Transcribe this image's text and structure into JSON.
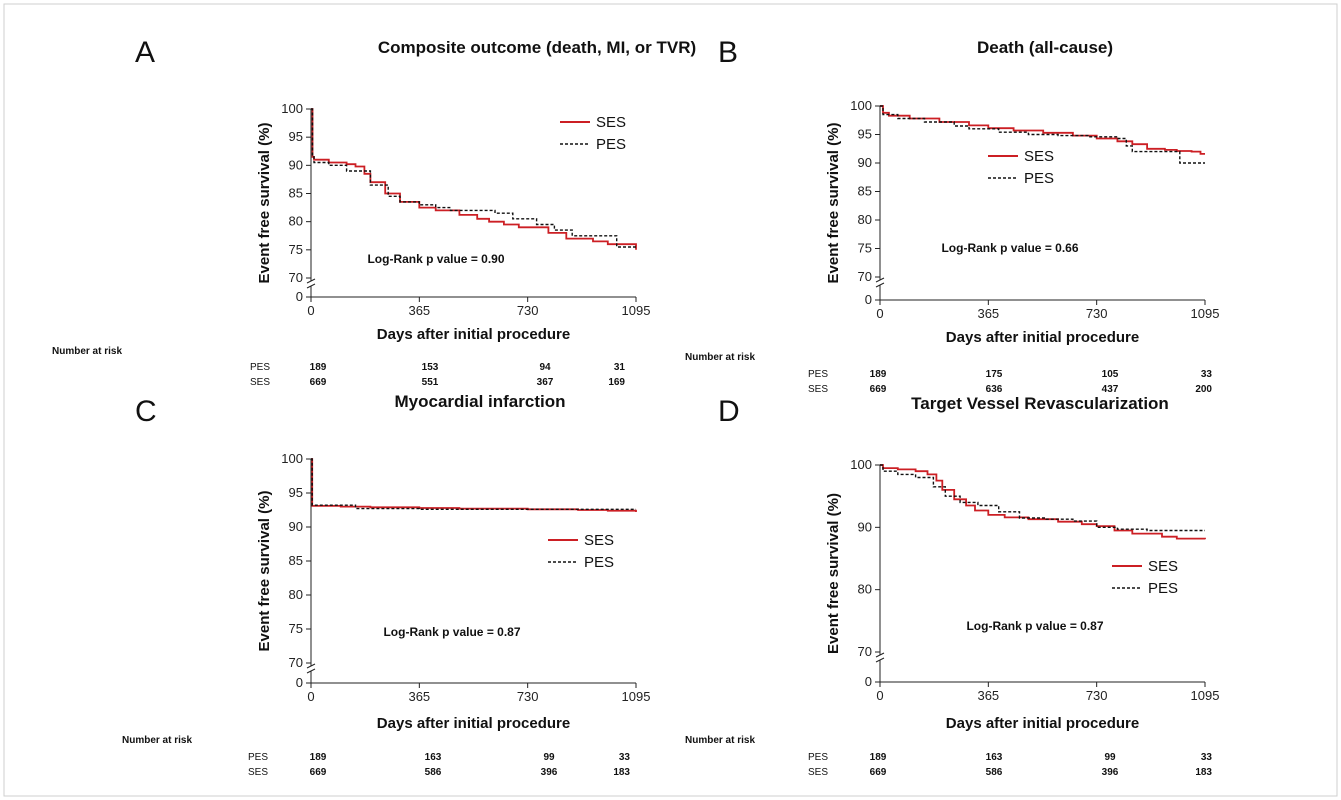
{
  "colors": {
    "ses": "#cc1f24",
    "pes": "#111111"
  },
  "number_at_risk_label": "Number at risk",
  "chart_data": [
    {
      "type": "line",
      "panel": "A",
      "title": "Composite outcome (death, MI, or TVR)",
      "xlabel": "Days after initial procedure",
      "ylabel": "Event free survival (%)",
      "xticks": [
        0,
        365,
        730,
        1095
      ],
      "yticks": [
        0,
        70,
        75,
        80,
        85,
        90,
        95,
        100
      ],
      "xlim": [
        0,
        1095
      ],
      "ylim": [
        0,
        100
      ],
      "axis_break": true,
      "legend": [
        "SES",
        "PES"
      ],
      "annotation": "Log-Rank p value = 0.90",
      "series": [
        {
          "name": "SES",
          "step": true,
          "x": [
            0,
            5,
            10,
            60,
            120,
            150,
            180,
            200,
            250,
            300,
            365,
            420,
            500,
            560,
            600,
            650,
            700,
            800,
            860,
            950,
            1000,
            1095
          ],
          "y": [
            100,
            91.5,
            91,
            90.5,
            90.2,
            89.8,
            88.5,
            87,
            85,
            83.5,
            82.5,
            82,
            81.2,
            80.5,
            80,
            79.5,
            79,
            78,
            77,
            76.5,
            76,
            75
          ]
        },
        {
          "name": "PES",
          "step": true,
          "x": [
            0,
            5,
            10,
            60,
            120,
            170,
            200,
            260,
            300,
            365,
            420,
            470,
            550,
            620,
            680,
            760,
            820,
            880,
            960,
            1030,
            1095
          ],
          "y": [
            100,
            91.5,
            90.5,
            90,
            89,
            89,
            86.5,
            84.5,
            83.5,
            83,
            82.5,
            82,
            82,
            81.5,
            80.5,
            79.5,
            78.5,
            77.5,
            77.5,
            75.5,
            75.5
          ]
        }
      ],
      "risk_table": {
        "rows": [
          {
            "name": "PES",
            "values": [
              "189",
              "153",
              "94",
              "31"
            ]
          },
          {
            "name": "SES",
            "values": [
              "669",
              "551",
              "367",
              "169"
            ]
          }
        ]
      }
    },
    {
      "type": "line",
      "panel": "B",
      "title": "Death (all-cause)",
      "xlabel": "Days after initial procedure",
      "ylabel": "Event free survival (%)",
      "xticks": [
        0,
        365,
        730,
        1095
      ],
      "yticks": [
        0,
        70,
        75,
        80,
        85,
        90,
        95,
        100
      ],
      "xlim": [
        0,
        1095
      ],
      "ylim": [
        0,
        100
      ],
      "axis_break": true,
      "legend": [
        "SES",
        "PES"
      ],
      "annotation": "Log-Rank p value = 0.66",
      "series": [
        {
          "name": "SES",
          "step": true,
          "x": [
            0,
            10,
            30,
            100,
            200,
            300,
            365,
            450,
            550,
            650,
            730,
            800,
            850,
            900,
            960,
            1000,
            1050,
            1080,
            1095
          ],
          "y": [
            100,
            98.8,
            98.3,
            97.8,
            97.2,
            96.6,
            96.1,
            95.7,
            95.3,
            94.8,
            94.3,
            93.8,
            93.3,
            92.5,
            92.3,
            92.1,
            92,
            91.6,
            91.6
          ]
        },
        {
          "name": "PES",
          "step": true,
          "x": [
            0,
            10,
            60,
            150,
            250,
            300,
            400,
            500,
            600,
            700,
            800,
            830,
            850,
            950,
            1010,
            1060,
            1095
          ],
          "y": [
            100,
            98.5,
            97.8,
            97.2,
            96.5,
            96,
            95.4,
            95,
            94.8,
            94.6,
            94.3,
            93,
            92,
            92,
            90,
            90,
            90
          ]
        }
      ],
      "risk_table": {
        "rows": [
          {
            "name": "PES",
            "values": [
              "189",
              "175",
              "105",
              "33"
            ]
          },
          {
            "name": "SES",
            "values": [
              "669",
              "636",
              "437",
              "200"
            ]
          }
        ]
      }
    },
    {
      "type": "line",
      "panel": "C",
      "title": "Myocardial infarction",
      "xlabel": "Days after initial procedure",
      "ylabel": "Event free survival (%)",
      "xticks": [
        0,
        365,
        730,
        1095
      ],
      "yticks": [
        0,
        70,
        75,
        80,
        85,
        90,
        95,
        100
      ],
      "xlim": [
        0,
        1095
      ],
      "ylim": [
        0,
        100
      ],
      "axis_break": true,
      "legend": [
        "SES",
        "PES"
      ],
      "annotation": "Log-Rank p value = 0.87",
      "series": [
        {
          "name": "SES",
          "step": true,
          "x": [
            0,
            4,
            100,
            200,
            365,
            500,
            730,
            900,
            1000,
            1095
          ],
          "y": [
            100,
            93.1,
            93,
            92.9,
            92.8,
            92.7,
            92.6,
            92.5,
            92.4,
            92.2
          ]
        },
        {
          "name": "PES",
          "step": true,
          "x": [
            0,
            4,
            150,
            365,
            730,
            850,
            1095
          ],
          "y": [
            100,
            93.2,
            92.7,
            92.6,
            92.6,
            92.6,
            92.6
          ]
        }
      ],
      "risk_table": {
        "rows": [
          {
            "name": "PES",
            "values": [
              "189",
              "163",
              "99",
              "33"
            ]
          },
          {
            "name": "SES",
            "values": [
              "669",
              "586",
              "396",
              "183"
            ]
          }
        ]
      }
    },
    {
      "type": "line",
      "panel": "D",
      "title": "Target Vessel Revascularization",
      "xlabel": "Days after initial procedure",
      "ylabel": "Event free survival (%)",
      "xticks": [
        0,
        365,
        730,
        1095
      ],
      "yticks": [
        0,
        70,
        80,
        90,
        100
      ],
      "xlim": [
        0,
        1095
      ],
      "ylim": [
        0,
        100
      ],
      "axis_break": true,
      "legend": [
        "SES",
        "PES"
      ],
      "annotation": "Log-Rank p value = 0.87",
      "series": [
        {
          "name": "SES",
          "step": true,
          "x": [
            0,
            10,
            60,
            120,
            160,
            190,
            210,
            250,
            290,
            320,
            365,
            420,
            500,
            600,
            680,
            730,
            790,
            850,
            950,
            1000,
            1095
          ],
          "y": [
            100,
            99.5,
            99.3,
            99,
            98.5,
            97.5,
            96,
            94.5,
            93.5,
            92.7,
            92,
            91.6,
            91.3,
            90.9,
            90.5,
            90.2,
            89.5,
            89,
            88.5,
            88.2,
            88.1
          ]
        },
        {
          "name": "PES",
          "step": true,
          "x": [
            0,
            10,
            60,
            120,
            180,
            220,
            270,
            330,
            400,
            470,
            560,
            650,
            730,
            800,
            900,
            1000,
            1095
          ],
          "y": [
            100,
            99,
            98.5,
            98,
            96.5,
            95,
            94,
            93.5,
            92.5,
            91.5,
            91.3,
            91,
            90,
            89.7,
            89.5,
            89.5,
            89.5
          ]
        }
      ],
      "risk_table": {
        "rows": [
          {
            "name": "PES",
            "values": [
              "189",
              "163",
              "99",
              "33"
            ]
          },
          {
            "name": "SES",
            "values": [
              "669",
              "586",
              "396",
              "183"
            ]
          }
        ]
      }
    }
  ]
}
